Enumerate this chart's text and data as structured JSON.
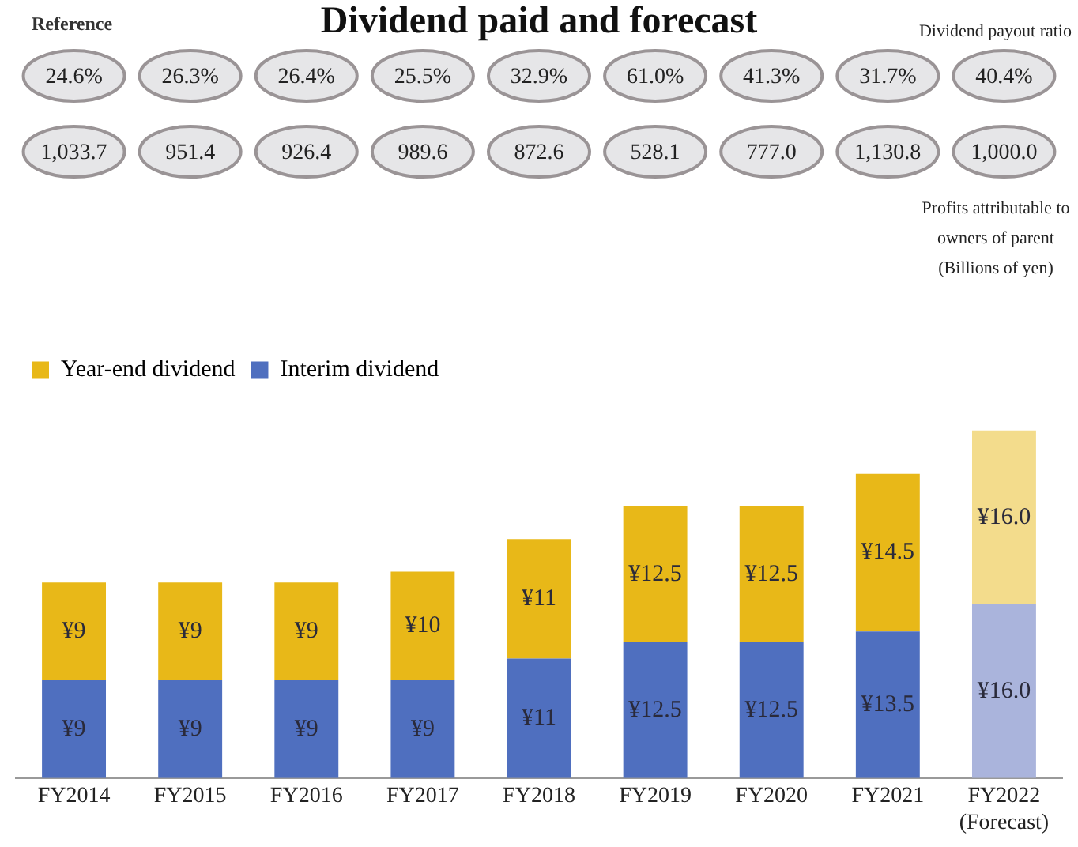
{
  "chart_data": {
    "type": "bar",
    "stacked": true,
    "title": "Dividend paid and forecast",
    "subtitle": "Reference",
    "categories": [
      "FY2014",
      "FY2015",
      "FY2016",
      "FY2017",
      "FY2018",
      "FY2019",
      "FY2020",
      "FY2021",
      "FY2022\n(Forecast)"
    ],
    "series": [
      {
        "name": "Interim dividend",
        "color": "#4f6fbf",
        "colors": [
          "#4f6fbf",
          "#4f6fbf",
          "#4f6fbf",
          "#4f6fbf",
          "#4f6fbf",
          "#4f6fbf",
          "#4f6fbf",
          "#4f6fbf",
          "#aab4dc"
        ],
        "values": [
          9,
          9,
          9,
          9,
          11,
          12.5,
          12.5,
          13.5,
          16
        ],
        "value_labels": [
          "¥9",
          "¥9",
          "¥9",
          "¥9",
          "¥11",
          "¥12.5",
          "¥12.5",
          "¥13.5",
          "¥16.0"
        ]
      },
      {
        "name": "Year-end dividend",
        "color": "#e8b818",
        "colors": [
          "#e8b818",
          "#e8b818",
          "#e8b818",
          "#e8b818",
          "#e8b818",
          "#e8b818",
          "#e8b818",
          "#e8b818",
          "#f3dc8c"
        ],
        "values": [
          9,
          9,
          9,
          10,
          11,
          12.5,
          12.5,
          14.5,
          16
        ],
        "value_labels": [
          "¥9",
          "¥9",
          "¥9",
          "¥10",
          "¥11",
          "¥12.5",
          "¥12.5",
          "¥14.5",
          "¥16.0"
        ]
      }
    ],
    "legend": "top left",
    "annotations": [
      "Dividend payout ratio",
      "24.6%",
      "26.3%",
      "26.4%",
      "25.5%",
      "32.9%",
      "61.0%",
      "41.3%",
      "31.7%",
      "40.4%",
      "1,033.7",
      "951.4",
      "926.4",
      "989.6",
      "872.6",
      "528.1",
      "777.0",
      "1,130.8",
      "1,000.0",
      "Profits attributable to owners of parent (Billions of yen)"
    ]
  }
}
